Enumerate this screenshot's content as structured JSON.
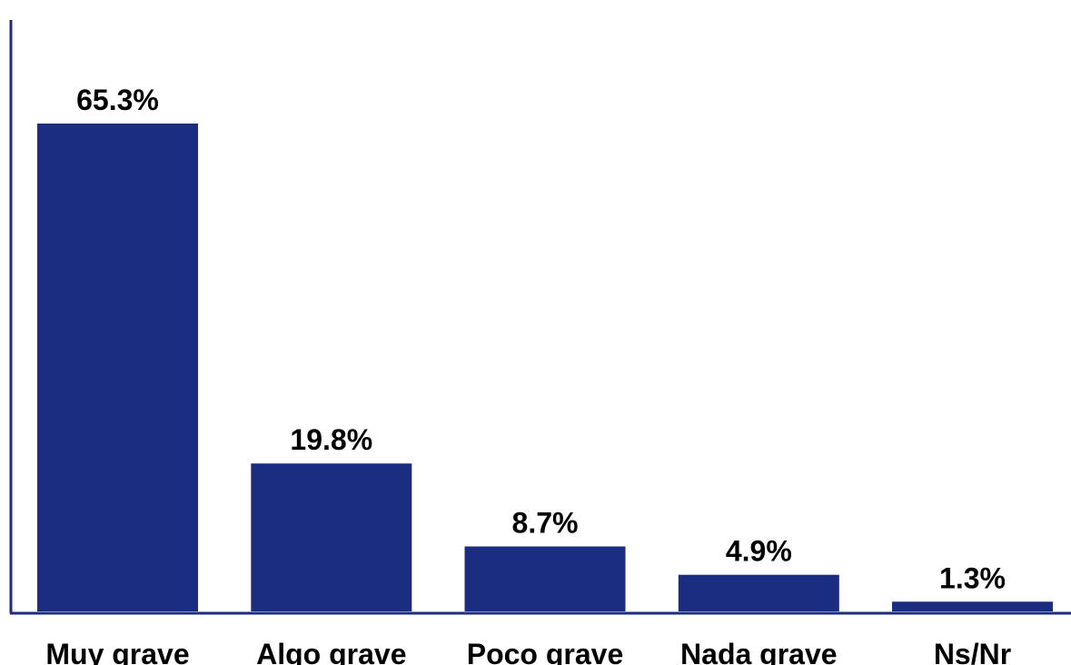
{
  "chart_data": {
    "type": "bar",
    "categories": [
      "Muy grave",
      "Algo grave",
      "Poco grave",
      "Nada grave",
      "Ns/Nr"
    ],
    "values": [
      65.3,
      19.8,
      8.7,
      4.9,
      1.3
    ],
    "value_labels": [
      "65.3%",
      "19.8%",
      "8.7%",
      "4.9%",
      "1.3%"
    ],
    "title": "",
    "xlabel": "",
    "ylabel": "",
    "ylim": [
      0,
      80
    ],
    "grid": false,
    "legend": "none",
    "bar_color": "#1a2d80",
    "axis_color": "#1a2d80"
  }
}
